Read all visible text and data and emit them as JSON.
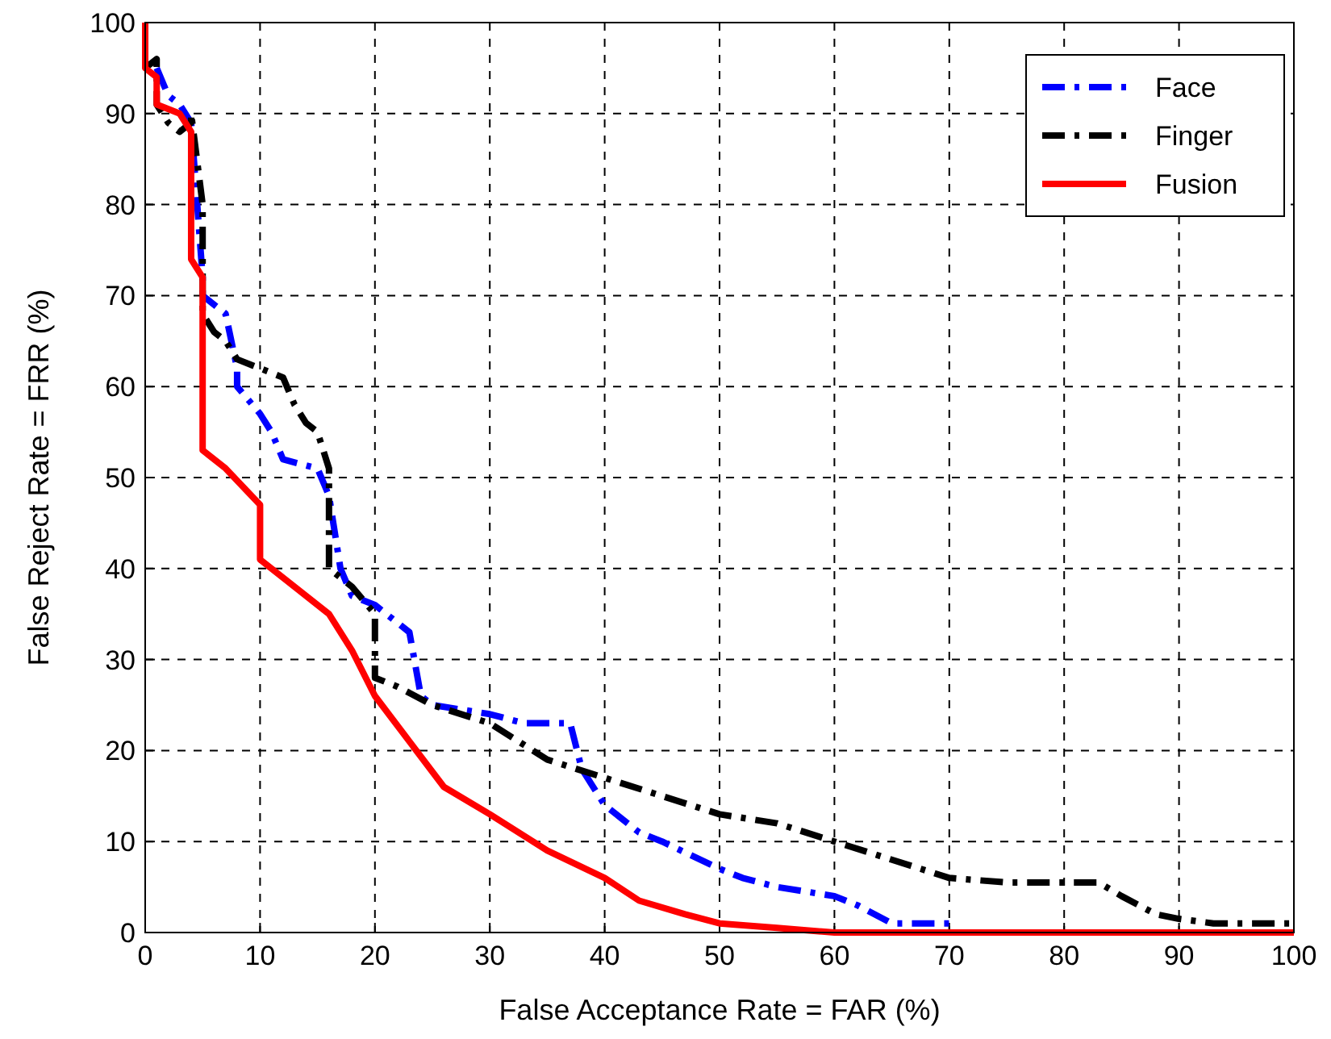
{
  "chart_data": {
    "type": "line",
    "xlabel": "False Acceptance Rate = FAR (%)",
    "ylabel": "False Reject Rate = FRR (%)",
    "xlim": [
      0,
      100
    ],
    "ylim": [
      0,
      100
    ],
    "xticks": [
      0,
      10,
      20,
      30,
      40,
      50,
      60,
      70,
      80,
      90,
      100
    ],
    "yticks": [
      0,
      10,
      20,
      30,
      40,
      50,
      60,
      70,
      80,
      90,
      100
    ],
    "grid": true,
    "legend": "top right",
    "series": [
      {
        "name": "Face",
        "color": "#0000ff",
        "line_style": "dashdot",
        "x": [
          1,
          2,
          3,
          4,
          5,
          5,
          7,
          8,
          8,
          10,
          11,
          12,
          15,
          16,
          17,
          18,
          20,
          22,
          23,
          24,
          25,
          30,
          33,
          37,
          38,
          39,
          40,
          43,
          45,
          50,
          52,
          55,
          60,
          62,
          65,
          70
        ],
        "values": [
          95,
          92,
          91,
          89,
          72,
          70,
          68,
          62,
          60,
          57,
          55,
          52,
          51,
          48,
          40,
          37,
          36,
          34,
          33,
          26,
          25,
          24,
          23,
          23,
          18,
          16,
          14,
          11,
          10,
          7,
          6,
          5,
          4,
          3,
          1,
          1
        ]
      },
      {
        "name": "Finger",
        "color": "#000000",
        "line_style": "dashdot",
        "x": [
          0,
          1,
          1,
          2,
          3,
          4,
          4,
          5,
          5,
          5,
          6,
          7,
          8,
          10,
          12,
          13,
          14,
          15,
          16,
          16,
          18,
          20,
          20,
          22,
          25,
          30,
          35,
          40,
          45,
          50,
          55,
          60,
          65,
          70,
          75,
          80,
          83,
          85,
          88,
          90,
          93,
          100
        ],
        "values": [
          95,
          96,
          91,
          89,
          88,
          89,
          90,
          80,
          72,
          68,
          66,
          65,
          63,
          62,
          61,
          58,
          56,
          55,
          51,
          40,
          38,
          35,
          28,
          27,
          25,
          23,
          19,
          17,
          15,
          13,
          12,
          10,
          8,
          6,
          5.5,
          5.5,
          5.5,
          4,
          2,
          1.5,
          1,
          1
        ]
      },
      {
        "name": "Fusion",
        "color": "#ff0000",
        "line_style": "solid",
        "x": [
          0,
          0,
          1,
          1,
          3,
          4,
          4,
          5,
          5,
          7,
          10,
          10,
          13,
          16,
          18,
          20,
          23,
          26,
          30,
          35,
          40,
          43,
          47,
          50,
          55,
          60,
          100
        ],
        "values": [
          100,
          95,
          94,
          91,
          90,
          88,
          74,
          72,
          53,
          51,
          47,
          41,
          38,
          35,
          31,
          26,
          21,
          16,
          13,
          9,
          6,
          3.5,
          2,
          1,
          0.5,
          0,
          0
        ]
      }
    ]
  }
}
